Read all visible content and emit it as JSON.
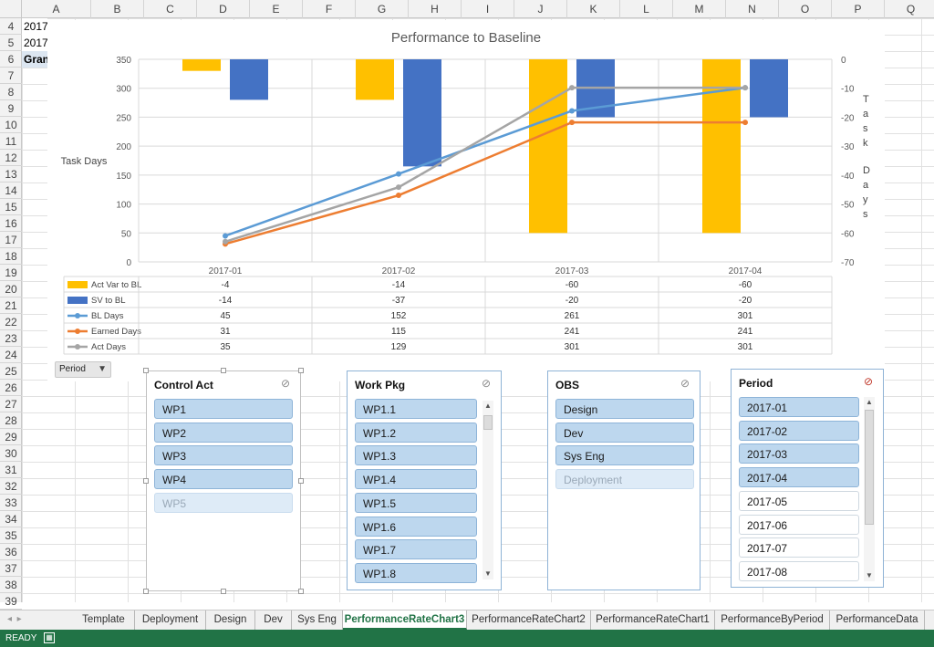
{
  "columns": [
    "A",
    "B",
    "C",
    "D",
    "E",
    "F",
    "G",
    "H",
    "I",
    "J",
    "K",
    "L",
    "M",
    "N",
    "O",
    "P",
    "Q"
  ],
  "rows": [
    "4",
    "5",
    "6",
    "7",
    "8",
    "9",
    "10",
    "11",
    "12",
    "13",
    "14",
    "15",
    "16",
    "17",
    "18",
    "19",
    "20",
    "21",
    "22",
    "23",
    "24",
    "25",
    "26",
    "27",
    "28",
    "29",
    "30",
    "31",
    "32",
    "33",
    "34",
    "35",
    "36",
    "37",
    "38",
    "39"
  ],
  "cells": {
    "a4": "2017-",
    "a5": "2017-",
    "a6": "Gran"
  },
  "chart": {
    "filter_button_label": "Period",
    "filter_icon": "funnel-icon"
  },
  "chart_data": {
    "type": "bar",
    "title": "Performance to Baseline",
    "categories": [
      "2017-01",
      "2017-02",
      "2017-03",
      "2017-04"
    ],
    "ylabel": "Task Days",
    "y2label": "Task Days",
    "ylim": [
      0,
      350
    ],
    "yticks": [
      0,
      50,
      100,
      150,
      200,
      250,
      300,
      350
    ],
    "y2lim": [
      -70,
      0
    ],
    "y2ticks": [
      0,
      -10,
      -20,
      -30,
      -40,
      -50,
      -60,
      -70
    ],
    "series": [
      {
        "name": "Act Var to BL",
        "type": "bar",
        "axis": "secondary",
        "color": "#ffc000",
        "values": [
          -4,
          -14,
          -60,
          -60
        ]
      },
      {
        "name": "SV to BL",
        "type": "bar",
        "axis": "secondary",
        "color": "#4472c4",
        "values": [
          -14,
          -37,
          -20,
          -20
        ]
      },
      {
        "name": "BL Days",
        "type": "line",
        "axis": "primary",
        "color": "#5b9bd5",
        "values": [
          45,
          152,
          261,
          301
        ]
      },
      {
        "name": "Earned Days",
        "type": "line",
        "axis": "primary",
        "color": "#ed7d31",
        "values": [
          31,
          115,
          241,
          241
        ]
      },
      {
        "name": "Act Days",
        "type": "line",
        "axis": "primary",
        "color": "#a5a5a5",
        "values": [
          35,
          129,
          301,
          301
        ]
      }
    ],
    "grid": true,
    "legend": "data-table"
  },
  "slicers": {
    "control_act": {
      "title": "Control Act",
      "items": [
        {
          "label": "WP1",
          "state": "sel"
        },
        {
          "label": "WP2",
          "state": "sel"
        },
        {
          "label": "WP3",
          "state": "sel"
        },
        {
          "label": "WP4",
          "state": "sel"
        },
        {
          "label": "WP5",
          "state": "nodata"
        }
      ]
    },
    "work_pkg": {
      "title": "Work Pkg",
      "items": [
        {
          "label": "WP1.1",
          "state": "sel"
        },
        {
          "label": "WP1.2",
          "state": "sel"
        },
        {
          "label": "WP1.3",
          "state": "sel"
        },
        {
          "label": "WP1.4",
          "state": "sel"
        },
        {
          "label": "WP1.5",
          "state": "sel"
        },
        {
          "label": "WP1.6",
          "state": "sel"
        },
        {
          "label": "WP1.7",
          "state": "sel"
        },
        {
          "label": "WP1.8",
          "state": "sel"
        }
      ]
    },
    "obs": {
      "title": "OBS",
      "items": [
        {
          "label": "Design",
          "state": "sel"
        },
        {
          "label": "Dev",
          "state": "sel"
        },
        {
          "label": "Sys Eng",
          "state": "sel"
        },
        {
          "label": "Deployment",
          "state": "nodata"
        }
      ]
    },
    "period": {
      "title": "Period",
      "items": [
        {
          "label": "2017-01",
          "state": "sel"
        },
        {
          "label": "2017-02",
          "state": "sel"
        },
        {
          "label": "2017-03",
          "state": "sel"
        },
        {
          "label": "2017-04",
          "state": "sel"
        },
        {
          "label": "2017-05",
          "state": "unsel"
        },
        {
          "label": "2017-06",
          "state": "unsel"
        },
        {
          "label": "2017-07",
          "state": "unsel"
        },
        {
          "label": "2017-08",
          "state": "unsel"
        }
      ]
    }
  },
  "tabs": [
    {
      "label": "Template"
    },
    {
      "label": "Deployment"
    },
    {
      "label": "Design"
    },
    {
      "label": "Dev"
    },
    {
      "label": "Sys Eng"
    },
    {
      "label": "PerformanceRateChart3",
      "active": true
    },
    {
      "label": "PerformanceRateChart2"
    },
    {
      "label": "PerformanceRateChart1"
    },
    {
      "label": "PerformanceByPeriod"
    },
    {
      "label": "PerformanceData"
    }
  ],
  "status": {
    "text": "READY"
  },
  "colors": {
    "excel_green": "#217346",
    "slicer_selected": "#bdd7ee"
  }
}
